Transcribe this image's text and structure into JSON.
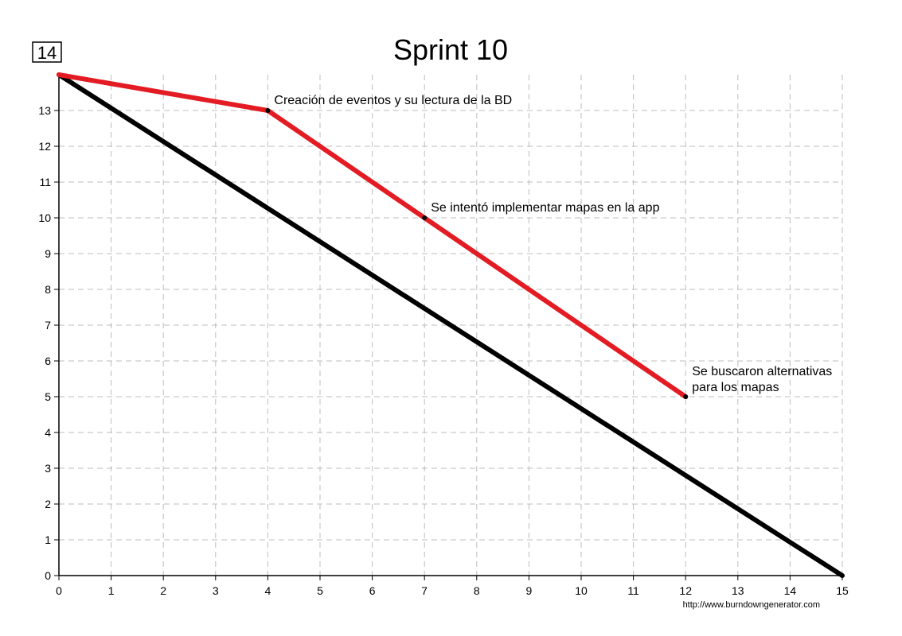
{
  "chart_data": {
    "type": "line",
    "title": "Sprint 10",
    "xlabel": "",
    "ylabel": "",
    "xlim": [
      0,
      15
    ],
    "ylim": [
      0,
      14
    ],
    "x_ticks": [
      0,
      1,
      2,
      3,
      4,
      5,
      6,
      7,
      8,
      9,
      10,
      11,
      12,
      13,
      14,
      15
    ],
    "y_ticks": [
      0,
      1,
      2,
      3,
      4,
      5,
      6,
      7,
      8,
      9,
      10,
      11,
      12,
      13
    ],
    "y_max_label": "14",
    "grid": true,
    "series": [
      {
        "color": "#000000",
        "x": [
          0,
          15
        ],
        "y": [
          14,
          0
        ]
      },
      {
        "color": "#e31b23",
        "x": [
          0,
          4,
          7,
          12
        ],
        "y": [
          14,
          13,
          10,
          5
        ]
      }
    ],
    "annotations": [
      {
        "x": 4,
        "y": 13,
        "lines": [
          "Creación de eventos y su lectura de la BD"
        ]
      },
      {
        "x": 7,
        "y": 10,
        "lines": [
          "Se intentó implementar mapas en la app"
        ]
      },
      {
        "x": 12,
        "y": 5,
        "lines": [
          "Se buscaron alternativas",
          "para los mapas"
        ]
      }
    ],
    "credit": "http://www.burndowngenerator.com"
  }
}
